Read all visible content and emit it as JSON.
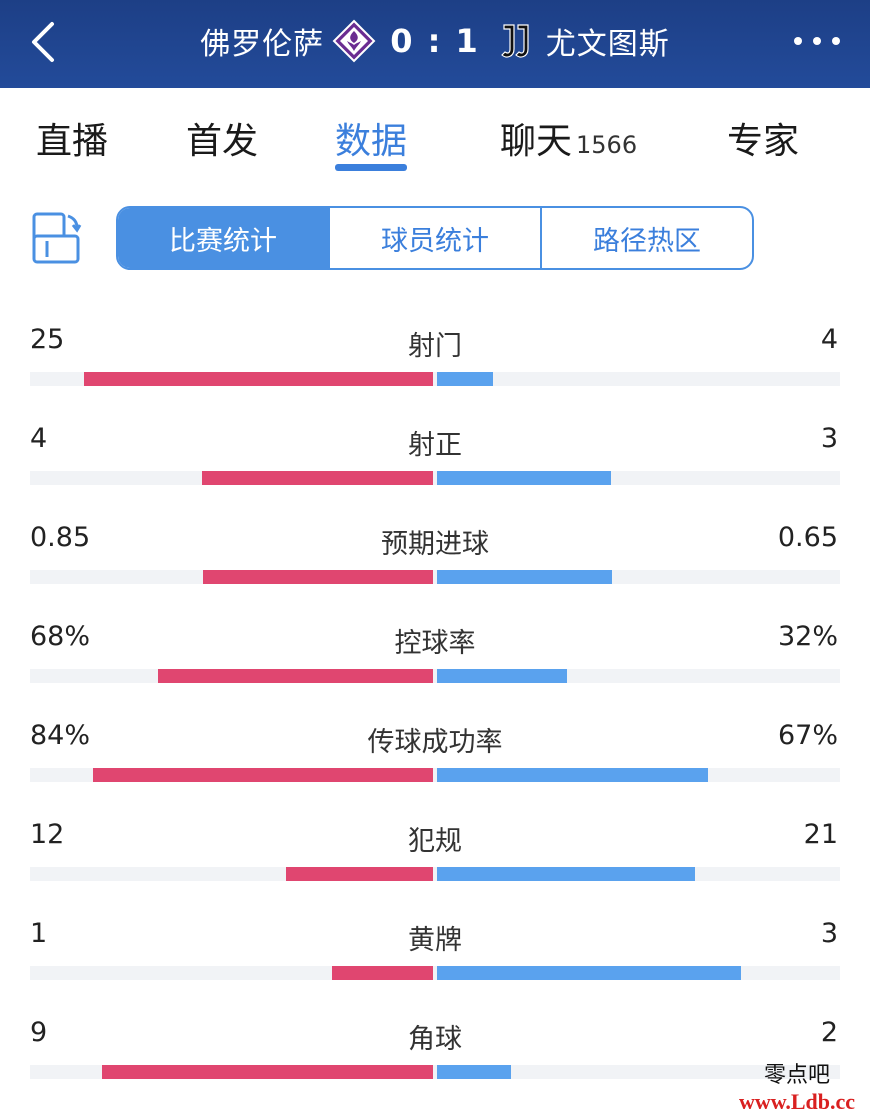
{
  "header": {
    "home_team": "佛罗伦萨",
    "away_team": "尤文图斯",
    "score": "0 : 1",
    "home_crest_icon": "fiorentina-crest-icon",
    "away_crest_icon": "juventus-crest-icon",
    "colors": {
      "bg": "#1d3f86",
      "text": "#ffffff"
    }
  },
  "tabs": [
    {
      "label": "直播",
      "active": false
    },
    {
      "label": "首发",
      "active": false
    },
    {
      "label": "数据",
      "active": true
    },
    {
      "label": "聊天",
      "count": "1566",
      "active": false
    },
    {
      "label": "专家",
      "active": false
    }
  ],
  "segments": [
    {
      "label": "比赛统计",
      "active": true
    },
    {
      "label": "球员统计",
      "active": false
    },
    {
      "label": "路径热区",
      "active": false
    }
  ],
  "stats": [
    {
      "label": "射门",
      "home": "25",
      "away": "4",
      "home_frac": 0.862,
      "away_frac": 0.138
    },
    {
      "label": "射正",
      "home": "4",
      "away": "3",
      "home_frac": 0.571,
      "away_frac": 0.429
    },
    {
      "label": "预期进球",
      "home": "0.85",
      "away": "0.65",
      "home_frac": 0.567,
      "away_frac": 0.433
    },
    {
      "label": "控球率",
      "home": "68%",
      "away": "32%",
      "home_frac": 0.68,
      "away_frac": 0.32
    },
    {
      "label": "传球成功率",
      "home": "84%",
      "away": "67%",
      "home_frac": 0.84,
      "away_frac": 0.67
    },
    {
      "label": "犯规",
      "home": "12",
      "away": "21",
      "home_frac": 0.364,
      "away_frac": 0.636
    },
    {
      "label": "黄牌",
      "home": "1",
      "away": "3",
      "home_frac": 0.25,
      "away_frac": 0.75
    },
    {
      "label": "角球",
      "home": "9",
      "away": "2",
      "home_frac": 0.818,
      "away_frac": 0.182
    }
  ],
  "colors": {
    "home_bar": "#e04670",
    "away_bar": "#5aa2ee",
    "accent": "#3b7fdc",
    "track": "#f1f3f6"
  },
  "watermark": {
    "line1": "零点吧",
    "line2": "www.Ldb.cc"
  }
}
